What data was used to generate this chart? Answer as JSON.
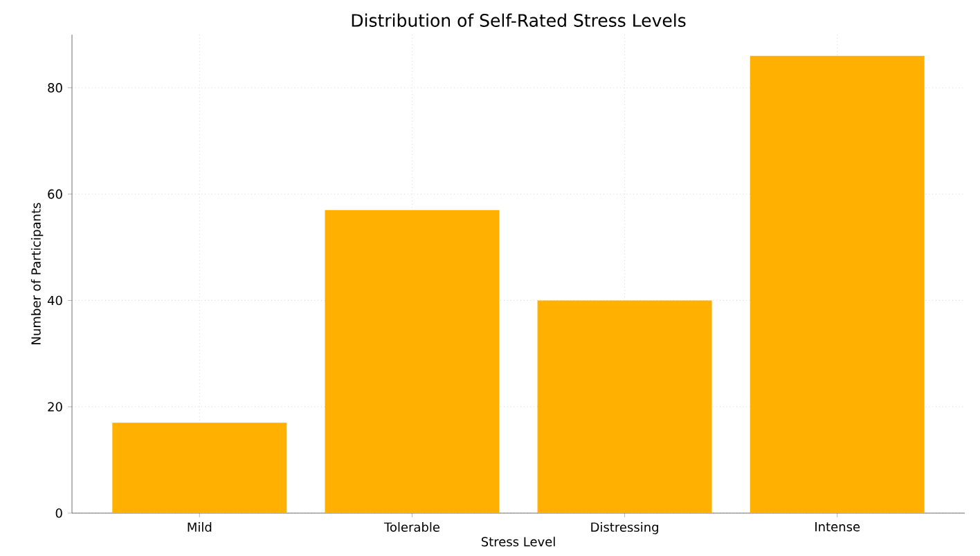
{
  "chart_data": {
    "type": "bar",
    "title": "Distribution of Self-Rated Stress Levels",
    "xlabel": "Stress Level",
    "ylabel": "Number of Participants",
    "categories": [
      "Mild",
      "Tolerable",
      "Distressing",
      "Intense"
    ],
    "values": [
      17,
      57,
      40,
      86
    ],
    "color": "#ffb000",
    "ylim": [
      0,
      90
    ],
    "yticks": [
      0,
      20,
      40,
      60,
      80
    ],
    "grid": true
  }
}
